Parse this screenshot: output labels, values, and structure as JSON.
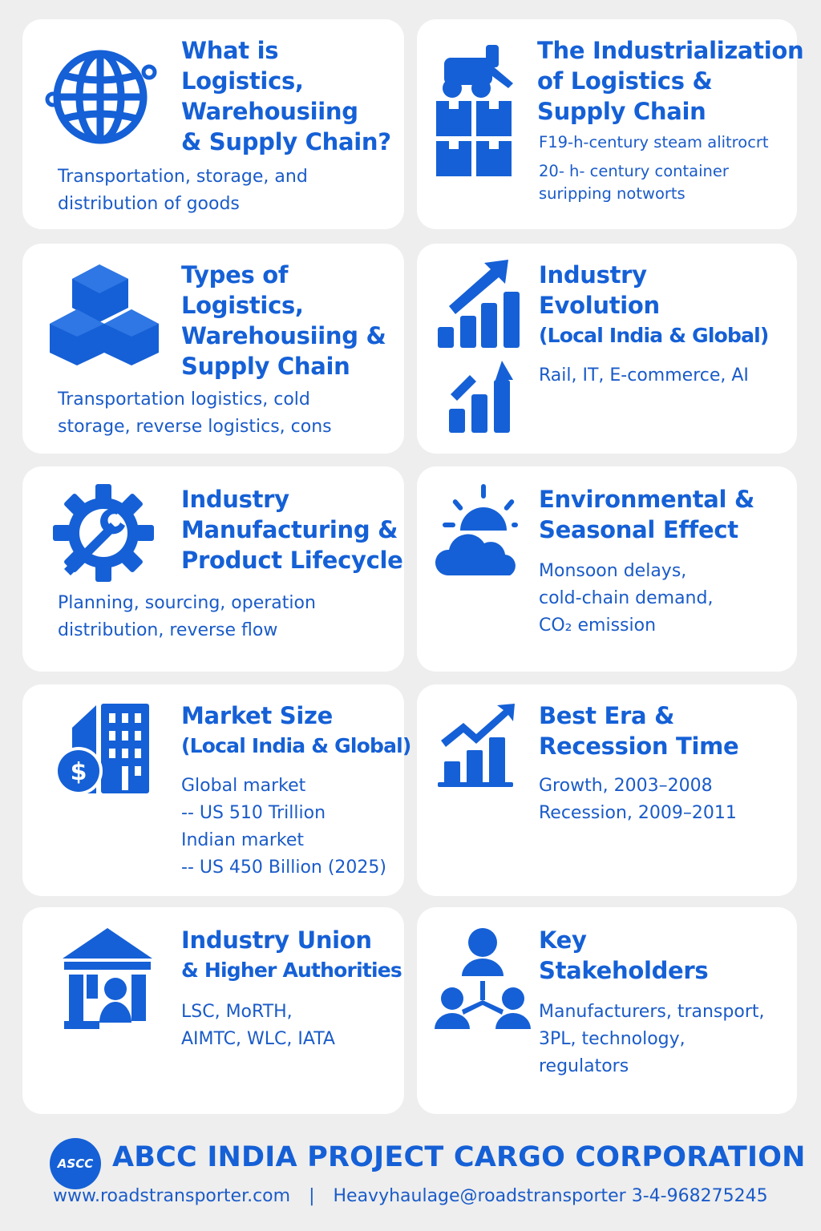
{
  "colors": {
    "accent": "#1560d6",
    "card": "#ffffff",
    "background": "#eeeeee"
  },
  "cards": [
    {
      "icon": "globe-icon",
      "title": [
        "What  is",
        "Logistics,",
        "Warehousiing",
        "& Supply Chain?"
      ],
      "body": [
        "Transportation, storage, and",
        "distribution of goods"
      ]
    },
    {
      "icon": "truck-boxes-icon",
      "title": [
        "The Industrialization",
        "of Logistics &",
        "Supply Chain"
      ],
      "body": [
        "F19-h-century steam alitrocrt",
        "20- h- century container",
        "suripping notworts"
      ]
    },
    {
      "icon": "boxes-icon",
      "title": [
        "Types of",
        "Logistics,",
        "Warehousiing &",
        "Supply Chain"
      ],
      "body": [
        "Transportation logistics, cold",
        "storage, reverse logistics, cons"
      ]
    },
    {
      "icon": "growth-chart-icon",
      "title": [
        "Industry",
        "Evolution",
        "(Local India & Global)"
      ],
      "body": [
        "Rail, IT, E-commerce, AI"
      ]
    },
    {
      "icon": "gear-wrench-icon",
      "title": [
        "Industry",
        "Manufacturing &",
        "Product Lifecycle"
      ],
      "body": [
        "Planning, sourcing, operation",
        "distribution, reverse flow"
      ]
    },
    {
      "icon": "sun-cloud-icon",
      "title": [
        "Environmental &",
        "Seasonal Effect"
      ],
      "body": [
        "Monsoon delays,",
        "cold-chain demand,",
        "CO₂ emission"
      ]
    },
    {
      "icon": "money-building-icon",
      "title": [
        "Market Size",
        "(Local India & Global)"
      ],
      "body": [
        "Global market",
        "-- US 510 Trillion",
        "Indian market",
        "-- US 450 Billion (2025)"
      ]
    },
    {
      "icon": "trend-chart-icon",
      "title": [
        "Best Era &",
        "Recession Time"
      ],
      "body": [
        "Growth, 2003–2008",
        "Recession, 2009–2011"
      ]
    },
    {
      "icon": "institution-icon",
      "title": [
        "Industry Union",
        "& Higher Authorities"
      ],
      "body": [
        "LSC, MoRTH,",
        "AIMTC, WLC, IATA"
      ]
    },
    {
      "icon": "stakeholders-network-icon",
      "title": [
        "Key",
        "Stakeholders"
      ],
      "body": [
        "Manufacturers, transport,",
        "3PL, technology,",
        "regulators"
      ]
    }
  ],
  "footer": {
    "logo_text": "ASCC",
    "company": "ABCC INDIA PROJECT CARGO CORPORATION",
    "website": "www.roadstransporter.com",
    "separator": "|",
    "contact": "Heavyhaulage@roadstransporter 3-4-968275245"
  }
}
